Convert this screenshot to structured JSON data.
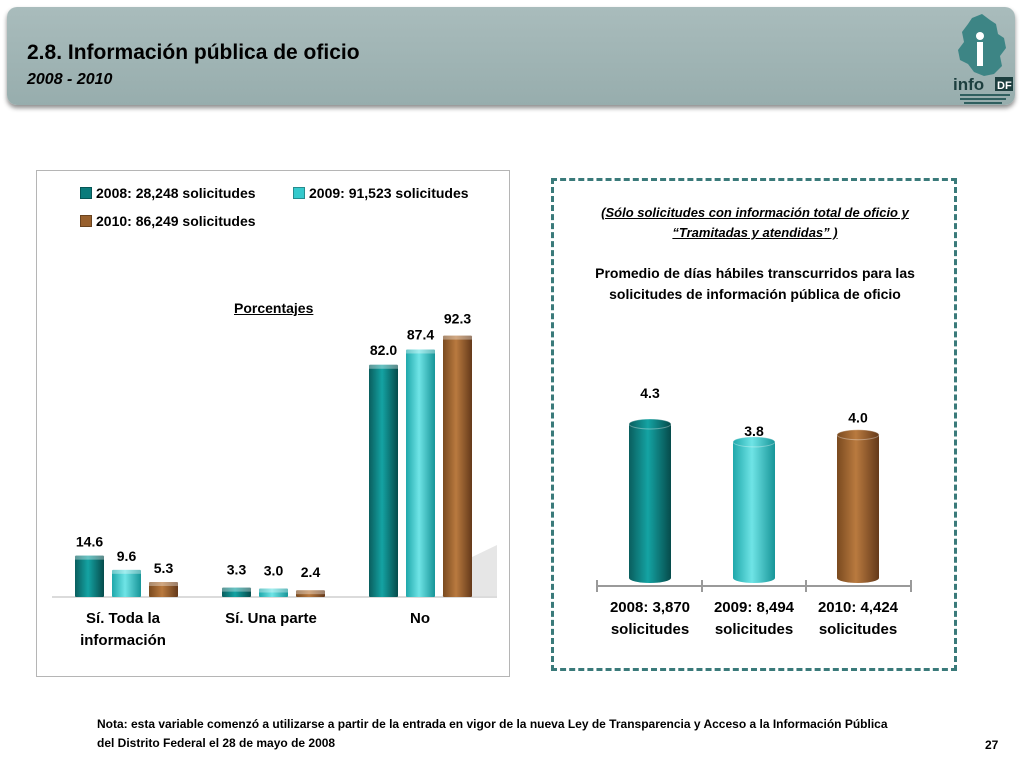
{
  "header": {
    "title": "2.8. Información pública de oficio",
    "subtitle": "2008 - 2010",
    "logo_text": "infoDF"
  },
  "colors": {
    "s2008": "#0a7b7b",
    "s2009": "#35c9cc",
    "s2010": "#98602d",
    "header_bg": "#a2b6b6",
    "dashed_border": "#3a7a7a"
  },
  "chart_data": [
    {
      "type": "bar",
      "title": "Porcentajes",
      "categories": [
        "Sí. Toda la información",
        "Sí. Una parte",
        "No"
      ],
      "category_lines": [
        [
          "Sí. Toda la",
          "información"
        ],
        [
          "Sí. Una parte"
        ],
        [
          "No"
        ]
      ],
      "series": [
        {
          "name": "2008: 28,248 solicitudes",
          "values": [
            14.6,
            3.3,
            82.0
          ],
          "labels": [
            "14.6",
            "3.3",
            "82.0"
          ]
        },
        {
          "name": "2009: 91,523 solicitudes",
          "values": [
            9.6,
            3.0,
            87.4
          ],
          "labels": [
            "9.6",
            "3.0",
            "87.4"
          ]
        },
        {
          "name": "2010: 86,249 solicitudes",
          "values": [
            5.3,
            2.4,
            92.3
          ],
          "labels": [
            "5.3",
            "2.4",
            "92.3"
          ]
        }
      ],
      "ylim": [
        0,
        100
      ],
      "grid": false,
      "legend": "top"
    },
    {
      "type": "bar",
      "title": "Promedio de días hábiles transcurridos  para las solicitudes de información pública de oficio",
      "note": "(Sólo solicitudes con información total de oficio y “Tramitadas y atendidas” )",
      "categories": [
        "2008: 3,870 solicitudes",
        "2009: 8,494 solicitudes",
        "2010: 4,424 solicitudes"
      ],
      "category_lines": [
        [
          "2008: 3,870",
          "solicitudes"
        ],
        [
          "2009: 8,494",
          "solicitudes"
        ],
        [
          "2010: 4,424",
          "solicitudes"
        ]
      ],
      "values": [
        4.3,
        3.8,
        4.0
      ],
      "labels": [
        "4.3",
        "3.8",
        "4.0"
      ],
      "ylim": [
        0,
        4.5
      ],
      "grid": false
    }
  ],
  "footnote": {
    "line1": "Nota: esta variable comenzó a utilizarse a partir de la entrada en vigor de la nueva Ley de Transparencia y Acceso a la Información Pública",
    "line2": "del Distrito Federal el 28 de mayo de 2008"
  },
  "page_number": "27"
}
